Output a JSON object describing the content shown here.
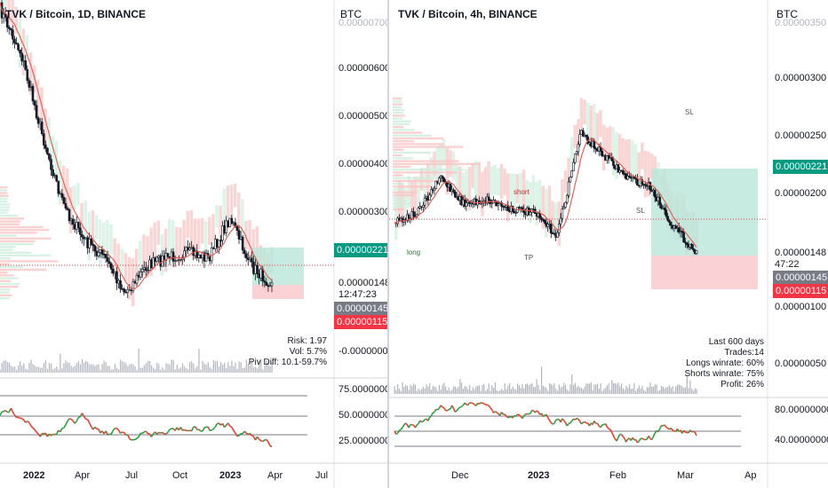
{
  "left": {
    "title": "TVK / Bitcoin, 1D, BINANCE",
    "currency": "BTC",
    "axis_labels": [
      "0.00000700",
      "0.00000600",
      "0.00000500",
      "0.00000400",
      "0.00000300",
      "0.00000148",
      "-0.00000000",
      "75.00000000",
      "50.00000000",
      "25.00000000"
    ],
    "tags": {
      "upper": "0.00000221",
      "countdown": "12:47:23",
      "current": "0.00000145",
      "lower": "0.00000115"
    },
    "info": {
      "risk": "Risk: 1.97",
      "vol": "Vol: 5.7%",
      "piv": "Piv Diff: 10.1-59.7%"
    },
    "time_axis": [
      "2022",
      "Apr",
      "Jul",
      "Oct",
      "2023",
      "Apr",
      "Jul"
    ]
  },
  "right": {
    "title": "TVK / Bitcoin, 4h, BINANCE",
    "currency": "BTC",
    "axis_labels": [
      "0.00000350",
      "0.00000300",
      "0.00000250",
      "0.00000200",
      "0.00000148",
      "0.00000100",
      "0.00000050",
      "80.00000000",
      "40.00000000"
    ],
    "tags": {
      "upper": "0.00000221",
      "countdown": "47:22",
      "current": "0.00000145",
      "lower": "0.00000115"
    },
    "info": [
      "Last 600 days",
      "Trades:14",
      "Longs winrate: 60%",
      "Shorts winrate: 75%",
      "Profit: 26%"
    ],
    "annotations": {
      "sl1": "SL",
      "sl2": "SL",
      "tp": "TP",
      "long": "long",
      "short": "short"
    },
    "time_axis": [
      "Dec",
      "2023",
      "Feb",
      "Mar",
      "Ap"
    ]
  },
  "colors": {
    "green_tag": "#089981",
    "red_tag": "#f23645",
    "gray_tag": "#787b86",
    "candle": "#131722",
    "ma": "#e05a4e",
    "rsi_up": "#2e9e44",
    "rsi_down": "#e8402e",
    "cloud_red": "#f7c5c5",
    "cloud_green": "#cdeedd",
    "tp_zone": "#b9e6d9",
    "sl_zone": "#f9c7cb"
  }
}
